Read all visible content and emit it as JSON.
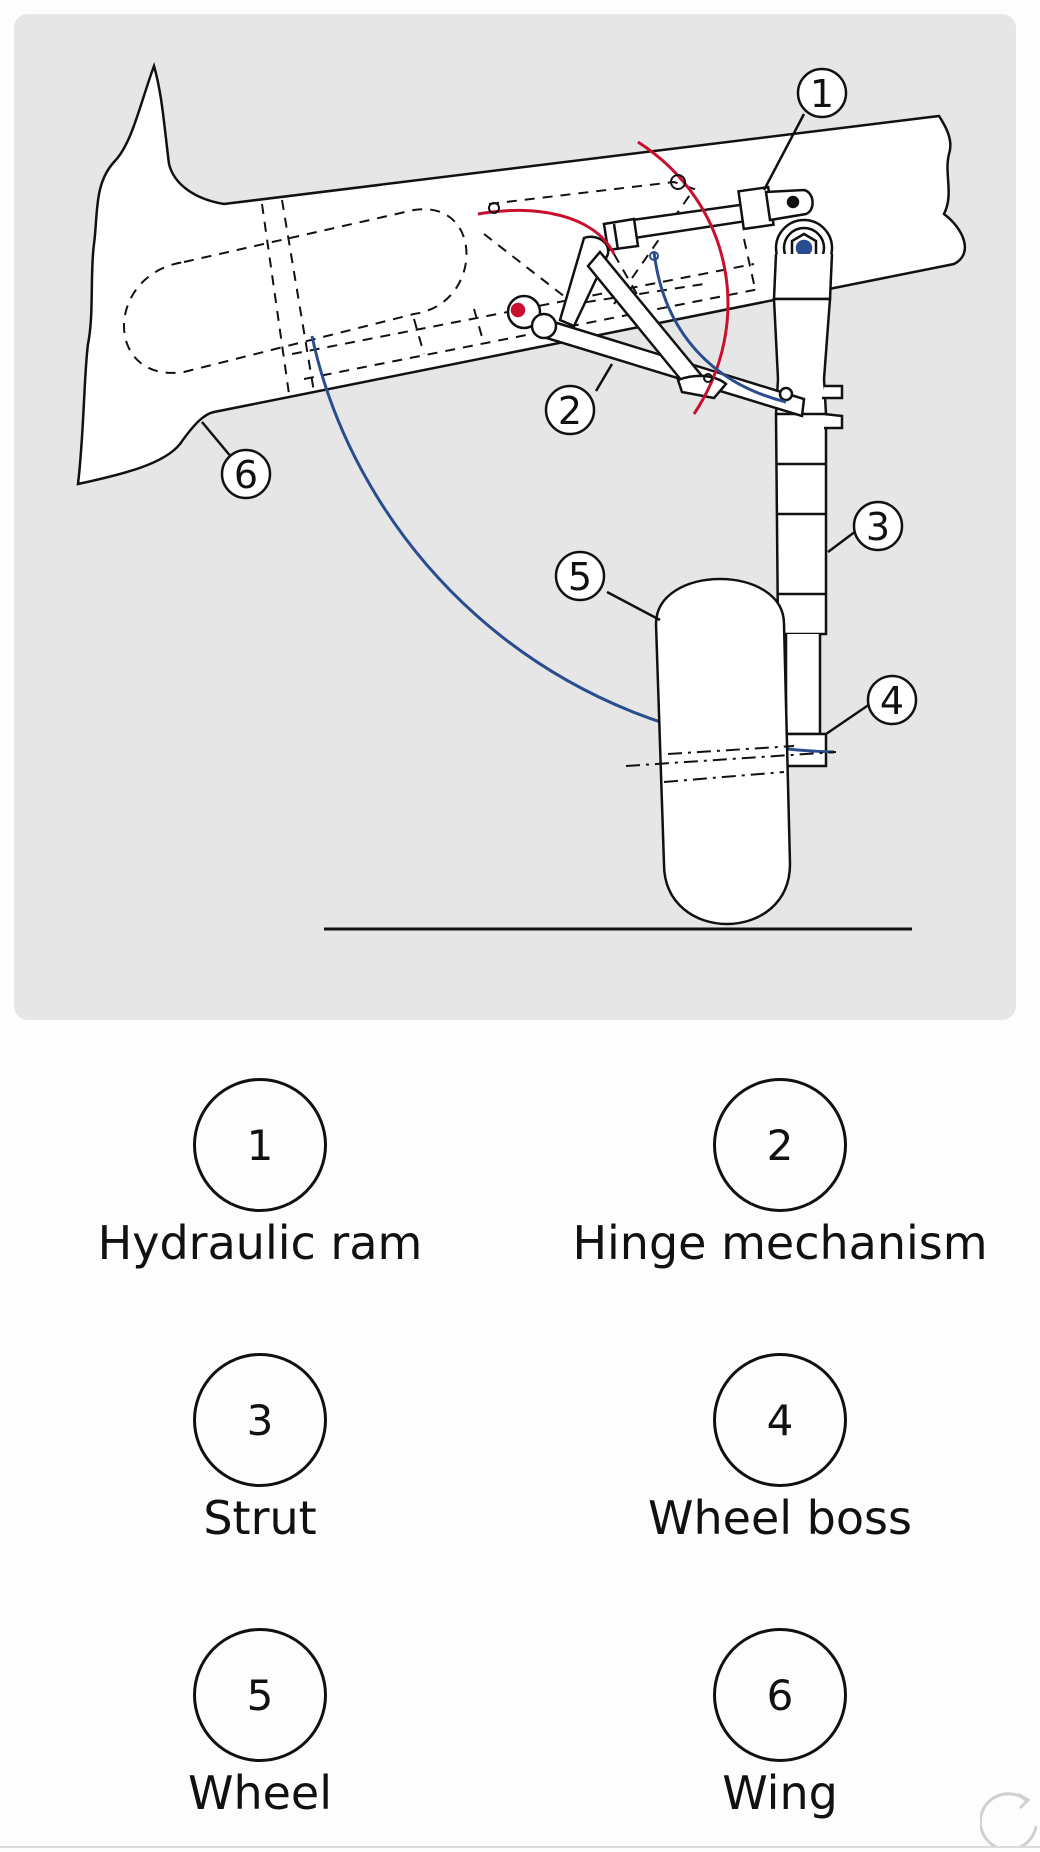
{
  "diagram": {
    "callouts": [
      {
        "number": "1"
      },
      {
        "number": "2"
      },
      {
        "number": "3"
      },
      {
        "number": "4"
      },
      {
        "number": "5"
      },
      {
        "number": "6"
      }
    ]
  },
  "legend": {
    "items": [
      {
        "number": "1",
        "label": "Hydraulic ram"
      },
      {
        "number": "2",
        "label": "Hinge mechanism"
      },
      {
        "number": "3",
        "label": "Strut"
      },
      {
        "number": "4",
        "label": "Wheel boss"
      },
      {
        "number": "5",
        "label": "Wheel"
      },
      {
        "number": "6",
        "label": "Wing"
      }
    ]
  },
  "colors": {
    "panel_background": "#e6e6e6",
    "retraction_arc_red": "#c8102e",
    "retraction_arc_blue": "#2a4d8f",
    "outline": "#111111"
  },
  "icons": {
    "refresh": "refresh-icon"
  }
}
